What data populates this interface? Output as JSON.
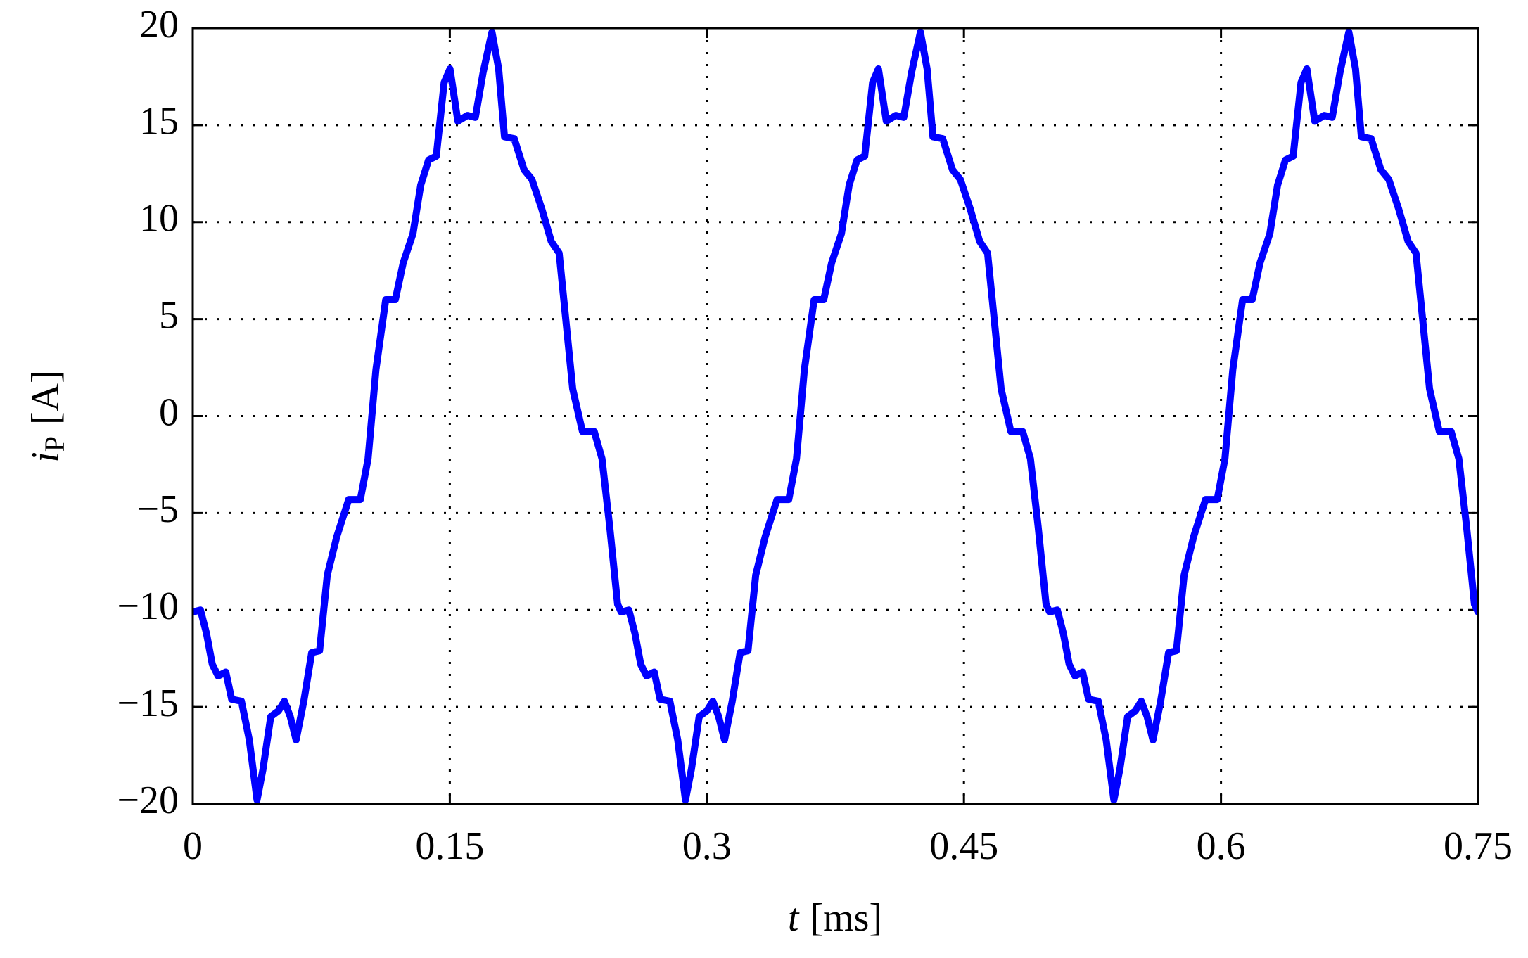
{
  "chart_data": {
    "type": "line",
    "xlabel": {
      "symbol": "t",
      "unit": "[ms]"
    },
    "ylabel": {
      "symbol": "i",
      "subscript": "P",
      "unit": "[A]"
    },
    "x": [
      0,
      0.0045,
      0.008,
      0.0114,
      0.0148,
      0.0193,
      0.0227,
      0.0284,
      0.033,
      0.0375,
      0.041,
      0.0455,
      0.05,
      0.0535,
      0.0569,
      0.0603,
      0.0648,
      0.0694,
      0.074,
      0.0785,
      0.0841,
      0.091,
      0.0978,
      0.1023,
      0.1069,
      0.1126,
      0.1182,
      0.1228,
      0.1285,
      0.133,
      0.1376,
      0.1421,
      0.1467,
      0.1501,
      0.1547,
      0.1603,
      0.1649,
      0.1694,
      0.1746,
      0.1785,
      0.1819,
      0.1876,
      0.1933,
      0.1979,
      0.2036,
      0.2092,
      0.2138,
      0.2172,
      0.2217,
      0.2274,
      0.2343,
      0.2388,
      0.2433,
      0.2479,
      0.25,
      0.2545,
      0.258,
      0.2614,
      0.2648,
      0.2693,
      0.2727,
      0.2784,
      0.283,
      0.2875,
      0.291,
      0.2955,
      0.3,
      0.3035,
      0.3069,
      0.3103,
      0.3148,
      0.3194,
      0.324,
      0.3285,
      0.3341,
      0.341,
      0.3478,
      0.3523,
      0.3569,
      0.3626,
      0.3682,
      0.3728,
      0.3785,
      0.383,
      0.3876,
      0.3921,
      0.3967,
      0.4001,
      0.4047,
      0.4103,
      0.4149,
      0.4194,
      0.4246,
      0.4285,
      0.4319,
      0.4376,
      0.4433,
      0.4479,
      0.4536,
      0.4592,
      0.4638,
      0.4672,
      0.4717,
      0.4774,
      0.4843,
      0.4888,
      0.4933,
      0.4979,
      0.5,
      0.5045,
      0.508,
      0.5114,
      0.5148,
      0.5193,
      0.5227,
      0.5284,
      0.533,
      0.5375,
      0.541,
      0.5455,
      0.55,
      0.5535,
      0.5569,
      0.5603,
      0.5648,
      0.5694,
      0.574,
      0.5785,
      0.5841,
      0.591,
      0.5978,
      0.6023,
      0.6069,
      0.6126,
      0.6182,
      0.6228,
      0.6285,
      0.633,
      0.6376,
      0.6421,
      0.6467,
      0.6501,
      0.6547,
      0.6603,
      0.6649,
      0.6694,
      0.6746,
      0.6785,
      0.6819,
      0.6876,
      0.6933,
      0.6979,
      0.7036,
      0.7092,
      0.7138,
      0.7172,
      0.7217,
      0.7274,
      0.7343,
      0.7388,
      0.7433,
      0.7479,
      0.75
    ],
    "series": [
      {
        "color": "#0000ff",
        "values": [
          -10.1,
          -10,
          -11.2,
          -12.8,
          -13.4,
          -13.2,
          -14.6,
          -14.7,
          -16.7,
          -19.8,
          -18.2,
          -15.5,
          -15.2,
          -14.7,
          -15.5,
          -16.7,
          -14.7,
          -12.2,
          -12.1,
          -8.2,
          -6.2,
          -4.3,
          -4.3,
          -2.2,
          2.4,
          6.0,
          6.0,
          7.9,
          9.4,
          11.9,
          13.2,
          13.4,
          17.2,
          17.9,
          15.2,
          15.5,
          15.4,
          17.7,
          19.8,
          17.9,
          14.4,
          14.3,
          12.7,
          12.2,
          10.7,
          9.0,
          8.4,
          5.4,
          1.4,
          -0.8,
          -0.8,
          -2.2,
          -5.7,
          -9.7,
          -10.1,
          -10,
          -11.2,
          -12.8,
          -13.4,
          -13.2,
          -14.6,
          -14.7,
          -16.7,
          -19.8,
          -18.2,
          -15.5,
          -15.2,
          -14.7,
          -15.5,
          -16.7,
          -14.7,
          -12.2,
          -12.1,
          -8.2,
          -6.2,
          -4.3,
          -4.3,
          -2.2,
          2.4,
          6.0,
          6.0,
          7.9,
          9.4,
          11.9,
          13.2,
          13.4,
          17.2,
          17.9,
          15.2,
          15.5,
          15.4,
          17.7,
          19.8,
          17.9,
          14.4,
          14.3,
          12.7,
          12.2,
          10.7,
          9.0,
          8.4,
          5.4,
          1.4,
          -0.8,
          -0.8,
          -2.2,
          -5.7,
          -9.7,
          -10.1,
          -10,
          -11.2,
          -12.8,
          -13.4,
          -13.2,
          -14.6,
          -14.7,
          -16.7,
          -19.8,
          -18.2,
          -15.5,
          -15.2,
          -14.7,
          -15.5,
          -16.7,
          -14.7,
          -12.2,
          -12.1,
          -8.2,
          -6.2,
          -4.3,
          -4.3,
          -2.2,
          2.4,
          6.0,
          6.0,
          7.9,
          9.4,
          11.9,
          13.2,
          13.4,
          17.2,
          17.9,
          15.2,
          15.5,
          15.4,
          17.7,
          19.8,
          17.9,
          14.4,
          14.3,
          12.7,
          12.2,
          10.7,
          9.0,
          8.4,
          5.4,
          1.4,
          -0.8,
          -0.8,
          -2.2,
          -5.7,
          -9.7,
          -10.1
        ]
      }
    ],
    "xlim": [
      0,
      0.75
    ],
    "xticks": [
      0,
      0.15,
      0.3,
      0.45,
      0.6,
      0.75
    ],
    "ylim": [
      -20,
      20
    ],
    "yticks": [
      {
        "value": -20,
        "label": "−20"
      },
      {
        "value": -15,
        "label": "−15"
      },
      {
        "value": -10,
        "label": "−10"
      },
      {
        "value": -5,
        "label": "−5"
      },
      0,
      5,
      10,
      15,
      20
    ],
    "grid": true
  }
}
